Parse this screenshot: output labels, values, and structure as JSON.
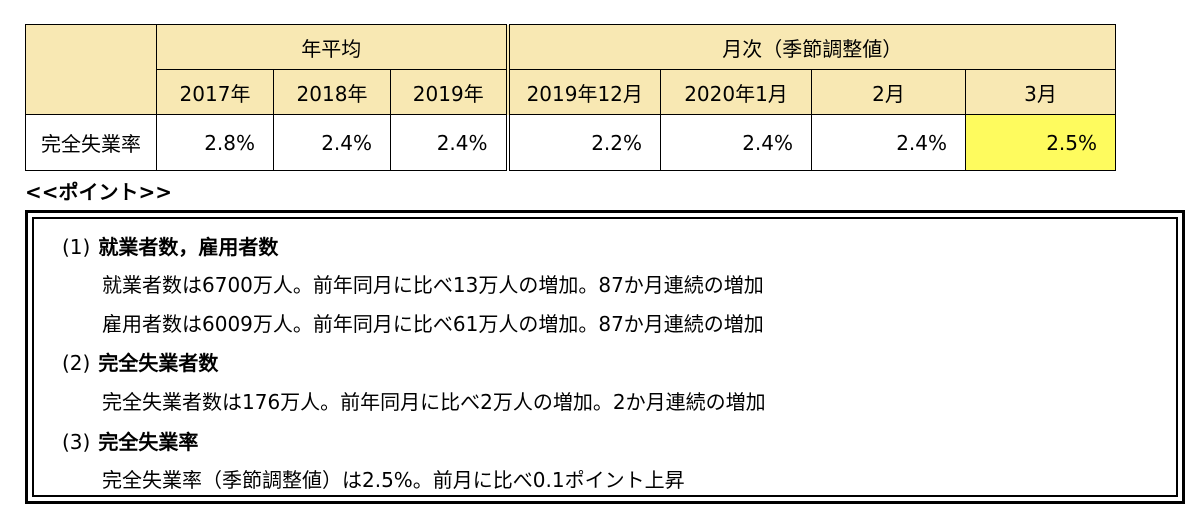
{
  "table": {
    "group_annual": "年平均",
    "group_monthly": "月次（季節調整値）",
    "columns": [
      "2017年",
      "2018年",
      "2019年",
      "2019年12月",
      "2020年1月",
      "2月",
      "3月"
    ],
    "row_label": "完全失業率",
    "values": [
      "2.8%",
      "2.4%",
      "2.4%",
      "2.2%",
      "2.4%",
      "2.4%",
      "2.5%"
    ],
    "highlight_color": "#fefb5e",
    "header_color": "#f8e8b3"
  },
  "points": {
    "title": "<<ポイント>>",
    "items": [
      {
        "num": "(1)",
        "title": "就業者数，雇用者数",
        "lines": [
          "就業者数は6700万人。前年同月に比べ13万人の増加。87か月連続の増加",
          "雇用者数は6009万人。前年同月に比べ61万人の増加。87か月連続の増加"
        ]
      },
      {
        "num": "(2)",
        "title": "完全失業者数",
        "lines": [
          "完全失業者数は176万人。前年同月に比べ2万人の増加。2か月連続の増加"
        ]
      },
      {
        "num": "(3)",
        "title": "完全失業率",
        "lines": [
          "完全失業率（季節調整値）は2.5%。前月に比べ0.1ポイント上昇"
        ]
      }
    ]
  }
}
